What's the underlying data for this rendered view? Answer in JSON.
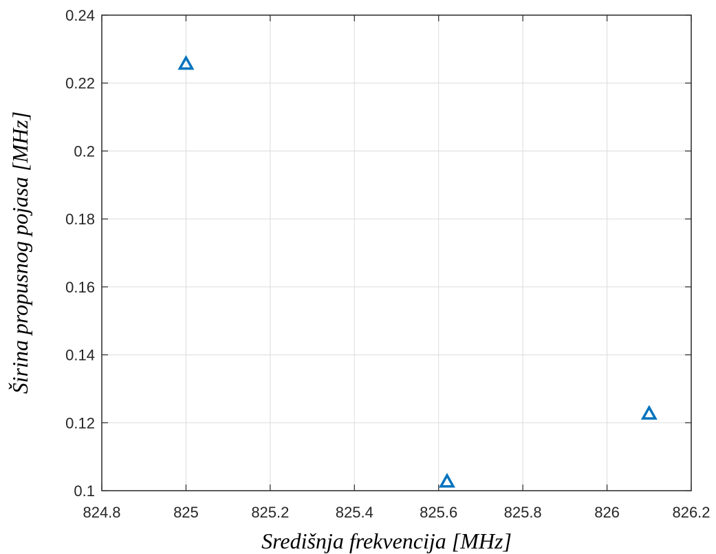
{
  "chart_data": {
    "type": "scatter",
    "title": "",
    "xlabel": "Središnja frekvencija [MHz]",
    "ylabel": "Širina propusnog pojasa  [MHz]",
    "xlim": [
      824.8,
      826.2
    ],
    "ylim": [
      0.1,
      0.24
    ],
    "xticks": [
      824.8,
      825,
      825.2,
      825.4,
      825.6,
      825.8,
      826,
      826.2
    ],
    "xtick_labels": [
      "824.8",
      "825",
      "825.2",
      "825.4",
      "825.6",
      "825.8",
      "826",
      "826.2"
    ],
    "yticks": [
      0.1,
      0.12,
      0.14,
      0.16,
      0.18,
      0.2,
      0.22,
      0.24
    ],
    "ytick_labels": [
      "0.1",
      "0.12",
      "0.14",
      "0.16",
      "0.18",
      "0.2",
      "0.22",
      "0.24"
    ],
    "grid": true,
    "marker": "triangle",
    "series": [
      {
        "x": [
          825.0,
          825.62,
          826.1
        ],
        "y": [
          0.2255,
          0.1025,
          0.1225
        ],
        "color": "#0072BD"
      }
    ]
  }
}
